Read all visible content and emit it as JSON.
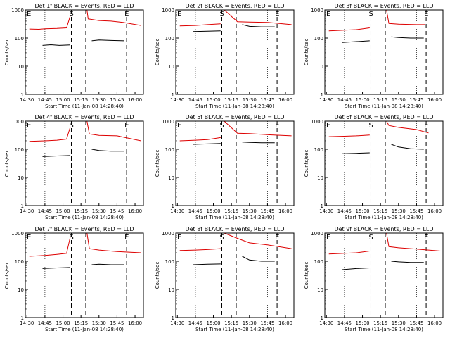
{
  "figure": {
    "y_axis_label": "Counts/sec",
    "x_axis_label": "Start Time (11-Jan-08 14:28:40)",
    "x_tick_labels": [
      "14:30",
      "14:45",
      "15:00",
      "15:15",
      "15:30",
      "15:45",
      "16:00"
    ],
    "y_tick_labels": [
      "1",
      "10",
      "100",
      "1000"
    ],
    "markers": {
      "start": "S",
      "end": "E"
    },
    "colors": {
      "events": "#000000",
      "lld": "#dd0000",
      "axes": "#000000",
      "background": "#ffffff"
    }
  },
  "chart_data": [
    {
      "type": "line",
      "title": "Det 1f BLACK = Events, RED = LLD",
      "xlabel": "Start Time (11-Jan-08 14:28:40)",
      "ylabel": "Counts/sec",
      "yscale": "log",
      "ylim": [
        1,
        1000
      ],
      "xlim": [
        "14:28:40",
        "16:07:00"
      ],
      "grid": "vertical dotted at 14:45, 15:45",
      "markers": [
        {
          "label": "S",
          "x": "15:07"
        },
        {
          "label": "E",
          "x": "15:53"
        }
      ],
      "series": [
        {
          "name": "BLACK = Events",
          "color": "#000000",
          "segments": [
            {
              "x": [
                "14:43",
                "14:50",
                "14:57",
                "15:06"
              ],
              "y": [
                55,
                58,
                55,
                57
              ]
            },
            {
              "x": [
                "15:24",
                "15:30",
                "15:40",
                "15:51"
              ],
              "y": [
                80,
                85,
                82,
                80
              ]
            }
          ]
        },
        {
          "name": "RED = LLD",
          "color": "#dd0000",
          "segments": [
            {
              "x": [
                "14:32",
                "14:40",
                "14:45",
                "14:55",
                "15:03",
                "15:06"
              ],
              "y": [
                210,
                205,
                215,
                220,
                230,
                600
              ]
            },
            {
              "x": [
                "15:20",
                "15:21",
                "15:30",
                "15:40",
                "15:50",
                "16:05"
              ],
              "y": [
                1000,
                480,
                420,
                400,
                360,
                280
              ]
            }
          ]
        }
      ]
    },
    {
      "type": "line",
      "title": "Det 2f BLACK = Events, RED = LLD",
      "xlabel": "Start Time (11-Jan-08 14:28:40)",
      "ylabel": "Counts/sec",
      "yscale": "log",
      "ylim": [
        1,
        1000
      ],
      "xlim": [
        "14:28:40",
        "16:07:00"
      ],
      "grid": "vertical dotted at 14:45, 15:45",
      "markers": [
        {
          "label": "S",
          "x": "15:07"
        },
        {
          "label": "E",
          "x": "15:53"
        }
      ],
      "series": [
        {
          "name": "BLACK = Events",
          "color": "#000000",
          "segments": [
            {
              "x": [
                "14:43",
                "14:55",
                "15:06"
              ],
              "y": [
                170,
                175,
                180
              ]
            },
            {
              "x": [
                "15:24",
                "15:30",
                "15:40",
                "15:51"
              ],
              "y": [
                300,
                260,
                250,
                250
              ]
            }
          ]
        },
        {
          "name": "RED = LLD",
          "color": "#dd0000",
          "segments": [
            {
              "x": [
                "14:32",
                "14:45",
                "14:55",
                "15:06"
              ],
              "y": [
                270,
                280,
                300,
                320
              ]
            },
            {
              "x": [
                "15:09",
                "15:20",
                "15:30",
                "15:45",
                "16:05"
              ],
              "y": [
                1000,
                380,
                370,
                360,
                300
              ]
            }
          ]
        }
      ]
    },
    {
      "type": "line",
      "title": "Det 3f BLACK = Events, RED = LLD",
      "xlabel": "Start Time (11-Jan-08 14:28:40)",
      "ylabel": "Counts/sec",
      "yscale": "log",
      "ylim": [
        1,
        1000
      ],
      "xlim": [
        "14:28:40",
        "16:07:00"
      ],
      "grid": "vertical dotted at 14:45, 15:45",
      "markers": [
        {
          "label": "S",
          "x": "15:07"
        },
        {
          "label": "E",
          "x": "15:53"
        }
      ],
      "series": [
        {
          "name": "BLACK = Events",
          "color": "#000000",
          "segments": [
            {
              "x": [
                "14:43",
                "14:55",
                "15:06"
              ],
              "y": [
                70,
                75,
                80
              ]
            },
            {
              "x": [
                "15:24",
                "15:30",
                "15:40",
                "15:51"
              ],
              "y": [
                110,
                105,
                100,
                100
              ]
            }
          ]
        },
        {
          "name": "RED = LLD",
          "color": "#dd0000",
          "segments": [
            {
              "x": [
                "14:32",
                "14:45",
                "14:55",
                "15:06"
              ],
              "y": [
                180,
                190,
                200,
                230
              ]
            },
            {
              "x": [
                "15:20",
                "15:22",
                "15:30",
                "15:45",
                "15:52"
              ],
              "y": [
                1000,
                330,
                310,
                300,
                300
              ]
            }
          ]
        }
      ]
    },
    {
      "type": "line",
      "title": "Det 4f BLACK = Events, RED = LLD",
      "xlabel": "Start Time (11-Jan-08 14:28:40)",
      "ylabel": "Counts/sec",
      "yscale": "log",
      "ylim": [
        1,
        1000
      ],
      "xlim": [
        "14:28:40",
        "16:07:00"
      ],
      "grid": "vertical dotted at 14:45, 15:45",
      "markers": [
        {
          "label": "S",
          "x": "15:07"
        },
        {
          "label": "E",
          "x": "15:53"
        }
      ],
      "series": [
        {
          "name": "BLACK = Events",
          "color": "#000000",
          "segments": [
            {
              "x": [
                "14:43",
                "14:55",
                "15:06"
              ],
              "y": [
                55,
                58,
                60
              ]
            },
            {
              "x": [
                "15:24",
                "15:30",
                "15:40",
                "15:51"
              ],
              "y": [
                100,
                90,
                85,
                85
              ]
            }
          ]
        },
        {
          "name": "RED = LLD",
          "color": "#dd0000",
          "segments": [
            {
              "x": [
                "14:32",
                "14:45",
                "14:55",
                "15:03",
                "15:06"
              ],
              "y": [
                190,
                200,
                210,
                230,
                600
              ]
            },
            {
              "x": [
                "15:20",
                "15:22",
                "15:30",
                "15:45",
                "16:05"
              ],
              "y": [
                1000,
                350,
                310,
                300,
                200
              ]
            }
          ]
        }
      ]
    },
    {
      "type": "line",
      "title": "Det 5f BLACK = Events, RED = LLD",
      "xlabel": "Start Time (11-Jan-08 14:28:40)",
      "ylabel": "Counts/sec",
      "yscale": "log",
      "ylim": [
        1,
        1000
      ],
      "xlim": [
        "14:28:40",
        "16:07:00"
      ],
      "grid": "vertical dotted at 14:45, 15:45",
      "markers": [
        {
          "label": "S",
          "x": "15:07"
        },
        {
          "label": "E",
          "x": "15:53"
        }
      ],
      "series": [
        {
          "name": "BLACK = Events",
          "color": "#000000",
          "segments": [
            {
              "x": [
                "14:43",
                "14:55",
                "15:06"
              ],
              "y": [
                150,
                155,
                160
              ]
            },
            {
              "x": [
                "15:24",
                "15:30",
                "15:40",
                "15:51"
              ],
              "y": [
                180,
                175,
                170,
                170
              ]
            }
          ]
        },
        {
          "name": "RED = LLD",
          "color": "#dd0000",
          "segments": [
            {
              "x": [
                "14:32",
                "14:45",
                "14:55",
                "15:06"
              ],
              "y": [
                200,
                210,
                220,
                260
              ]
            },
            {
              "x": [
                "15:09",
                "15:20",
                "15:30",
                "15:45",
                "16:05"
              ],
              "y": [
                1000,
                370,
                360,
                330,
                300
              ]
            }
          ]
        }
      ]
    },
    {
      "type": "line",
      "title": "Det 6f BLACK = Events, RED = LLD",
      "xlabel": "Start Time (11-Jan-08 14:28:40)",
      "ylabel": "Counts/sec",
      "yscale": "log",
      "ylim": [
        1,
        1000
      ],
      "xlim": [
        "14:28:40",
        "16:07:00"
      ],
      "grid": "vertical dotted at 14:45, 15:45",
      "markers": [
        {
          "label": "S",
          "x": "15:07"
        },
        {
          "label": "E",
          "x": "15:53"
        }
      ],
      "series": [
        {
          "name": "BLACK = Events",
          "color": "#000000",
          "segments": [
            {
              "x": [
                "14:43",
                "14:55",
                "15:06"
              ],
              "y": [
                70,
                72,
                75
              ]
            },
            {
              "x": [
                "15:24",
                "15:30",
                "15:40",
                "15:51"
              ],
              "y": [
                150,
                120,
                105,
                100
              ]
            }
          ]
        },
        {
          "name": "RED = LLD",
          "color": "#dd0000",
          "segments": [
            {
              "x": [
                "14:32",
                "14:45",
                "14:55",
                "15:06"
              ],
              "y": [
                280,
                290,
                300,
                320
              ]
            },
            {
              "x": [
                "15:20",
                "15:22",
                "15:30",
                "15:45",
                "15:55"
              ],
              "y": [
                1000,
                700,
                600,
                500,
                380
              ]
            }
          ]
        }
      ]
    },
    {
      "type": "line",
      "title": "Det 7f BLACK = Events, RED = LLD",
      "xlabel": "Start Time (11-Jan-08 14:28:40)",
      "ylabel": "Counts/sec",
      "yscale": "log",
      "ylim": [
        1,
        1000
      ],
      "xlim": [
        "14:28:40",
        "16:07:00"
      ],
      "grid": "vertical dotted at 14:45, 15:45",
      "markers": [
        {
          "label": "S",
          "x": "15:07"
        },
        {
          "label": "E",
          "x": "15:53"
        }
      ],
      "series": [
        {
          "name": "BLACK = Events",
          "color": "#000000",
          "segments": [
            {
              "x": [
                "14:43",
                "14:55",
                "15:06"
              ],
              "y": [
                55,
                58,
                60
              ]
            },
            {
              "x": [
                "15:24",
                "15:30",
                "15:40",
                "15:51"
              ],
              "y": [
                75,
                78,
                75,
                75
              ]
            }
          ]
        },
        {
          "name": "RED = LLD",
          "color": "#dd0000",
          "segments": [
            {
              "x": [
                "14:32",
                "14:45",
                "14:55",
                "15:03",
                "15:06"
              ],
              "y": [
                150,
                160,
                175,
                190,
                700
              ]
            },
            {
              "x": [
                "15:20",
                "15:22",
                "15:30",
                "15:45",
                "16:05"
              ],
              "y": [
                1000,
                280,
                250,
                220,
                200
              ]
            }
          ]
        }
      ]
    },
    {
      "type": "line",
      "title": "Det 8f BLACK = Events, RED = LLD",
      "xlabel": "Start Time (11-Jan-08 14:28:40)",
      "ylabel": "Counts/sec",
      "yscale": "log",
      "ylim": [
        1,
        1000
      ],
      "xlim": [
        "14:28:40",
        "16:07:00"
      ],
      "grid": "vertical dotted at 14:45, 15:45",
      "markers": [
        {
          "label": "S",
          "x": "15:07"
        },
        {
          "label": "E",
          "x": "15:53"
        }
      ],
      "series": [
        {
          "name": "BLACK = Events",
          "color": "#000000",
          "segments": [
            {
              "x": [
                "14:43",
                "14:55",
                "15:06"
              ],
              "y": [
                75,
                78,
                80
              ]
            },
            {
              "x": [
                "15:24",
                "15:30",
                "15:40",
                "15:51"
              ],
              "y": [
                150,
                110,
                100,
                100
              ]
            }
          ]
        },
        {
          "name": "RED = LLD",
          "color": "#dd0000",
          "segments": [
            {
              "x": [
                "14:32",
                "14:45",
                "14:55",
                "15:06"
              ],
              "y": [
                240,
                250,
                260,
                280
              ]
            },
            {
              "x": [
                "15:09",
                "15:20",
                "15:30",
                "15:45",
                "16:05"
              ],
              "y": [
                1000,
                650,
                450,
                380,
                280
              ]
            }
          ]
        }
      ]
    },
    {
      "type": "line",
      "title": "Det 9f BLACK = Events, RED = LLD",
      "xlabel": "Start Time (11-Jan-08 14:28:40)",
      "ylabel": "Counts/sec",
      "yscale": "log",
      "ylim": [
        1,
        1000
      ],
      "xlim": [
        "14:28:40",
        "16:07:00"
      ],
      "grid": "vertical dotted at 14:45, 15:45",
      "markers": [
        {
          "label": "S",
          "x": "15:07"
        },
        {
          "label": "E",
          "x": "15:53"
        }
      ],
      "series": [
        {
          "name": "BLACK = Events",
          "color": "#000000",
          "segments": [
            {
              "x": [
                "14:43",
                "14:55",
                "15:06"
              ],
              "y": [
                50,
                55,
                58
              ]
            },
            {
              "x": [
                "15:24",
                "15:30",
                "15:40",
                "15:51"
              ],
              "y": [
                100,
                95,
                90,
                90
              ]
            }
          ]
        },
        {
          "name": "RED = LLD",
          "color": "#dd0000",
          "segments": [
            {
              "x": [
                "14:32",
                "14:45",
                "14:55",
                "15:06"
              ],
              "y": [
                180,
                190,
                200,
                230
              ]
            },
            {
              "x": [
                "15:20",
                "15:22",
                "15:30",
                "15:45",
                "16:05"
              ],
              "y": [
                1000,
                330,
                300,
                270,
                230
              ]
            }
          ]
        }
      ]
    }
  ]
}
